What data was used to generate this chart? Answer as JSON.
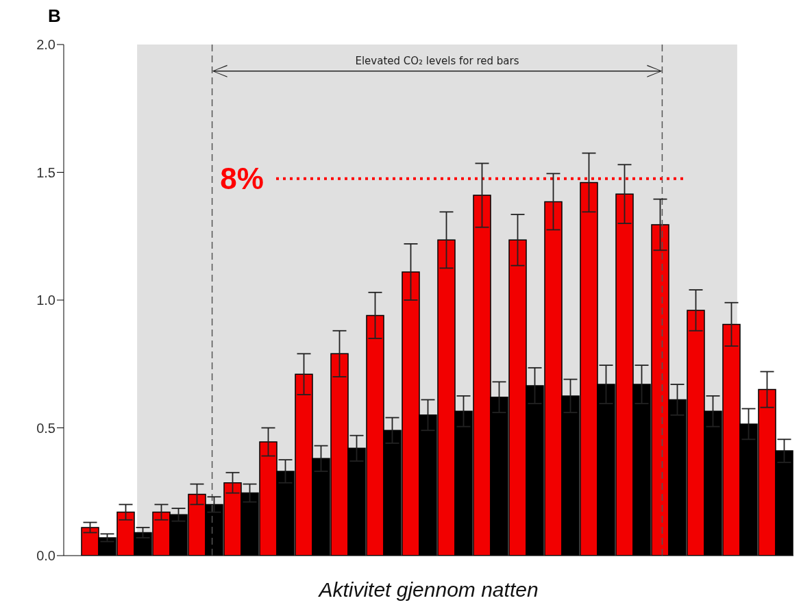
{
  "chart_data": {
    "type": "bar",
    "title": "B",
    "xlabel": "Aktivitet gjennom natten",
    "categories": [
      null,
      null,
      null,
      null,
      null,
      null,
      null,
      null,
      null,
      null,
      null,
      null,
      null,
      null,
      null,
      null,
      null,
      null,
      null,
      null
    ],
    "ylim": [
      0,
      2
    ],
    "yticks": [
      {
        "value": 0,
        "label": "0.0"
      },
      {
        "value": 0.5,
        "label": "0.5"
      },
      {
        "value": 1,
        "label": "1.0"
      },
      {
        "value": 1.5,
        "label": "1.5"
      },
      {
        "value": 2,
        "label": "2.0"
      }
    ],
    "series": [
      {
        "color": "#f20000",
        "values": [
          0.11,
          0.17,
          0.17,
          0.24,
          0.285,
          0.445,
          0.71,
          0.79,
          0.94,
          1.11,
          1.235,
          1.41,
          1.235,
          1.385,
          1.46,
          1.415,
          1.295,
          0.96,
          0.905,
          0.65
        ],
        "errors": [
          0.02,
          0.03,
          0.03,
          0.04,
          0.04,
          0.055,
          0.08,
          0.09,
          0.09,
          0.11,
          0.11,
          0.125,
          0.1,
          0.11,
          0.115,
          0.115,
          0.1,
          0.08,
          0.085,
          0.07
        ]
      },
      {
        "color": "#000000",
        "values": [
          0.07,
          0.09,
          0.16,
          0.2,
          0.245,
          0.33,
          0.38,
          0.42,
          0.49,
          0.55,
          0.565,
          0.62,
          0.665,
          0.625,
          0.67,
          0.67,
          0.61,
          0.565,
          0.515,
          0.41
        ],
        "errors": [
          0.015,
          0.02,
          0.025,
          0.03,
          0.035,
          0.045,
          0.05,
          0.05,
          0.05,
          0.06,
          0.06,
          0.06,
          0.07,
          0.065,
          0.075,
          0.075,
          0.06,
          0.06,
          0.06,
          0.045
        ]
      }
    ],
    "ref_lines": [
      {
        "axis": "y",
        "value": 1.475,
        "color": "#ff0000",
        "line_style": "dotted"
      }
    ],
    "annotations": [
      "Elevated CO₂ levels for red bars",
      "8%"
    ]
  }
}
